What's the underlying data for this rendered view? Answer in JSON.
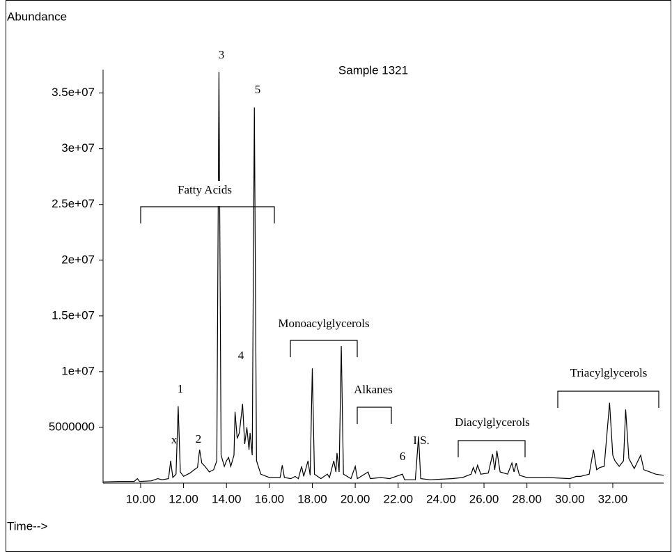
{
  "chart_data": {
    "type": "line",
    "title": "Sample 1321",
    "y_label": "Abundance",
    "x_label": "Time-->",
    "color": "#000000",
    "xlim": [
      8.25,
      34.37
    ],
    "ylim": [
      0,
      37100000
    ],
    "xticks": [
      {
        "value": 10,
        "label": "10.00"
      },
      {
        "value": 12,
        "label": "12.00"
      },
      {
        "value": 14,
        "label": "14.00"
      },
      {
        "value": 16,
        "label": "16.00"
      },
      {
        "value": 18,
        "label": "18.00"
      },
      {
        "value": 20,
        "label": "20.00"
      },
      {
        "value": 22,
        "label": "22.00"
      },
      {
        "value": 24,
        "label": "24.00"
      },
      {
        "value": 26,
        "label": "26.00"
      },
      {
        "value": 28,
        "label": "28.00"
      },
      {
        "value": 30,
        "label": "30.00"
      },
      {
        "value": 32,
        "label": "32.00"
      }
    ],
    "yticks": [
      5000000,
      {
        "value": 10000000,
        "label": "1e+07"
      },
      {
        "value": 15000000,
        "label": "1.5e+07"
      },
      {
        "value": 20000000,
        "label": "2e+07"
      },
      {
        "value": 25000000,
        "label": "2.5e+07"
      },
      {
        "value": 30000000,
        "label": "3e+07"
      },
      {
        "value": 35000000,
        "label": "3.5e+07"
      }
    ],
    "annotations": [
      "x",
      "1",
      "2",
      "3",
      "4",
      "5",
      "6",
      "I.S.",
      "Fatty Acids",
      "Monoacylglycerols",
      "Alkanes",
      "Diacylglycerols",
      "Triacylglycerols"
    ],
    "x": [
      8.25,
      9.0,
      9.7,
      9.85,
      9.95,
      10.5,
      10.8,
      11.0,
      11.3,
      11.4,
      11.5,
      11.65,
      11.75,
      11.85,
      12.0,
      12.3,
      12.5,
      12.65,
      12.75,
      12.85,
      13.0,
      13.2,
      13.4,
      13.55,
      13.65,
      13.75,
      13.9,
      14.0,
      14.1,
      14.2,
      14.35,
      14.4,
      14.5,
      14.6,
      14.75,
      14.85,
      14.95,
      15.05,
      15.1,
      15.2,
      15.3,
      15.4,
      15.6,
      16.0,
      16.5,
      16.6,
      16.7,
      17.0,
      17.2,
      17.35,
      17.5,
      17.6,
      17.8,
      17.9,
      18.0,
      18.1,
      18.4,
      18.7,
      18.8,
      19.0,
      19.1,
      19.15,
      19.25,
      19.35,
      19.45,
      19.8,
      20.0,
      20.1,
      20.6,
      20.7,
      21.2,
      21.6,
      22.2,
      22.3,
      22.8,
      22.95,
      23.05,
      23.5,
      24.5,
      25.0,
      25.4,
      25.5,
      25.6,
      25.7,
      25.85,
      26.2,
      26.4,
      26.5,
      26.6,
      26.75,
      27.1,
      27.3,
      27.4,
      27.5,
      27.65,
      28.0,
      29.0,
      30.0,
      30.3,
      30.5,
      30.9,
      31.1,
      31.25,
      31.4,
      31.6,
      31.85,
      32.0,
      32.1,
      32.3,
      32.5,
      32.6,
      32.75,
      33.0,
      33.3,
      33.45,
      34.0,
      34.37
    ],
    "values": [
      100000,
      150000,
      150000,
      400000,
      150000,
      200000,
      400000,
      300000,
      400000,
      2000000,
      500000,
      800000,
      6900000,
      1000000,
      600000,
      900000,
      1200000,
      1400000,
      3000000,
      1800000,
      1500000,
      1000000,
      1200000,
      2000000,
      36900000,
      2500000,
      1500000,
      2000000,
      2300000,
      1500000,
      2500000,
      6400000,
      4000000,
      4500000,
      7100000,
      3500000,
      5000000,
      3000000,
      4500000,
      2500000,
      33700000,
      2000000,
      800000,
      500000,
      500000,
      1600000,
      500000,
      400000,
      600000,
      400000,
      1500000,
      600000,
      2000000,
      700000,
      10300000,
      800000,
      400000,
      800000,
      500000,
      2000000,
      1000000,
      2700000,
      1000000,
      12300000,
      800000,
      400000,
      1500000,
      400000,
      1000000,
      400000,
      500000,
      400000,
      800000,
      300000,
      300000,
      4200000,
      400000,
      300000,
      400000,
      500000,
      800000,
      1400000,
      900000,
      1600000,
      800000,
      900000,
      2600000,
      1200000,
      2900000,
      1000000,
      800000,
      1800000,
      1000000,
      1800000,
      700000,
      500000,
      500000,
      400000,
      600000,
      600000,
      800000,
      3000000,
      1200000,
      1400000,
      1500000,
      7200000,
      2500000,
      2000000,
      1500000,
      2000000,
      6600000,
      2200000,
      1300000,
      2500000,
      1200000,
      800000,
      700000
    ]
  }
}
